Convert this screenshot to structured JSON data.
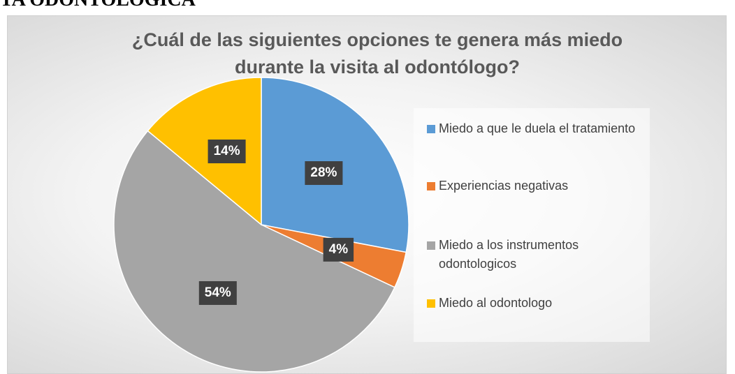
{
  "header": "TA ODONTOLOGICA",
  "chart_data": {
    "type": "pie",
    "title": "¿Cuál de las siguientes opciones te genera más miedo durante la visita al odontólogo?",
    "categories": [
      "Miedo a que le duela el tratamiento",
      "Experiencias negativas",
      "Miedo a los instrumentos odontologicos",
      "Miedo al odontologo"
    ],
    "values": [
      28,
      4,
      54,
      14
    ],
    "value_labels": [
      "28%",
      "4%",
      "54%",
      "14%"
    ],
    "colors": [
      "#5b9bd5",
      "#ed7d31",
      "#a5a5a5",
      "#ffc000"
    ],
    "legend": "right"
  }
}
